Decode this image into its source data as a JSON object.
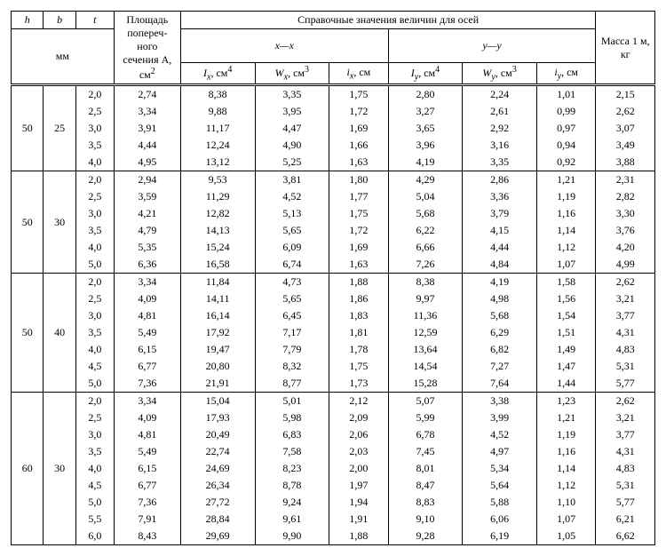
{
  "headers": {
    "h": "h",
    "b": "b",
    "t": "t",
    "mm": "мм",
    "area": "Площадь попереч- ного сечения A, см",
    "area_sup": "2",
    "ref_title": "Справочные значения величин для осей",
    "axis_x": "x—x",
    "axis_y": "y—y",
    "mass": "Масса 1 м, кг",
    "Ix": "I",
    "Ix_sub": "x",
    "Ix_unit": ", см",
    "Ix_sup": "4",
    "Wx": "W",
    "Wx_sub": "x",
    "Wx_unit": ", см",
    "Wx_sup": "3",
    "ix2": "i",
    "ix2_sub": "x",
    "ix2_unit": ", см",
    "Iy": "I",
    "Iy_sub": "y",
    "Iy_unit": ", см",
    "Iy_sup": "4",
    "Wy": "W",
    "Wy_sub": "y",
    "Wy_unit": ", см",
    "Wy_sup": "3",
    "iy2": "i",
    "iy2_sub": "y",
    "iy2_unit": ", см"
  },
  "groups": [
    {
      "h": "50",
      "b": "25",
      "rows": [
        {
          "t": "2,0",
          "A": "2,74",
          "Ix": "8,38",
          "Wx": "3,35",
          "ix": "1,75",
          "Iy": "2,80",
          "Wy": "2,24",
          "iy": "1,01",
          "m": "2,15"
        },
        {
          "t": "2,5",
          "A": "3,34",
          "Ix": "9,88",
          "Wx": "3,95",
          "ix": "1,72",
          "Iy": "3,27",
          "Wy": "2,61",
          "iy": "0,99",
          "m": "2,62"
        },
        {
          "t": "3,0",
          "A": "3,91",
          "Ix": "11,17",
          "Wx": "4,47",
          "ix": "1,69",
          "Iy": "3,65",
          "Wy": "2,92",
          "iy": "0,97",
          "m": "3,07"
        },
        {
          "t": "3,5",
          "A": "4,44",
          "Ix": "12,24",
          "Wx": "4,90",
          "ix": "1,66",
          "Iy": "3,96",
          "Wy": "3,16",
          "iy": "0,94",
          "m": "3,49"
        },
        {
          "t": "4,0",
          "A": "4,95",
          "Ix": "13,12",
          "Wx": "5,25",
          "ix": "1,63",
          "Iy": "4,19",
          "Wy": "3,35",
          "iy": "0,92",
          "m": "3,88"
        }
      ]
    },
    {
      "h": "50",
      "b": "30",
      "rows": [
        {
          "t": "2,0",
          "A": "2,94",
          "Ix": "9,53",
          "Wx": "3,81",
          "ix": "1,80",
          "Iy": "4,29",
          "Wy": "2,86",
          "iy": "1,21",
          "m": "2,31"
        },
        {
          "t": "2,5",
          "A": "3,59",
          "Ix": "11,29",
          "Wx": "4,52",
          "ix": "1,77",
          "Iy": "5,04",
          "Wy": "3,36",
          "iy": "1,19",
          "m": "2,82"
        },
        {
          "t": "3,0",
          "A": "4,21",
          "Ix": "12,82",
          "Wx": "5,13",
          "ix": "1,75",
          "Iy": "5,68",
          "Wy": "3,79",
          "iy": "1,16",
          "m": "3,30"
        },
        {
          "t": "3,5",
          "A": "4,79",
          "Ix": "14,13",
          "Wx": "5,65",
          "ix": "1,72",
          "Iy": "6,22",
          "Wy": "4,15",
          "iy": "1,14",
          "m": "3,76"
        },
        {
          "t": "4,0",
          "A": "5,35",
          "Ix": "15,24",
          "Wx": "6,09",
          "ix": "1,69",
          "Iy": "6,66",
          "Wy": "4,44",
          "iy": "1,12",
          "m": "4,20"
        },
        {
          "t": "5,0",
          "A": "6,36",
          "Ix": "16,58",
          "Wx": "6,74",
          "ix": "1,63",
          "Iy": "7,26",
          "Wy": "4,84",
          "iy": "1,07",
          "m": "4,99"
        }
      ]
    },
    {
      "h": "50",
      "b": "40",
      "rows": [
        {
          "t": "2,0",
          "A": "3,34",
          "Ix": "11,84",
          "Wx": "4,73",
          "ix": "1,88",
          "Iy": "8,38",
          "Wy": "4,19",
          "iy": "1,58",
          "m": "2,62"
        },
        {
          "t": "2,5",
          "A": "4,09",
          "Ix": "14,11",
          "Wx": "5,65",
          "ix": "1,86",
          "Iy": "9,97",
          "Wy": "4,98",
          "iy": "1,56",
          "m": "3,21"
        },
        {
          "t": "3,0",
          "A": "4,81",
          "Ix": "16,14",
          "Wx": "6,45",
          "ix": "1,83",
          "Iy": "11,36",
          "Wy": "5,68",
          "iy": "1,54",
          "m": "3,77"
        },
        {
          "t": "3,5",
          "A": "5,49",
          "Ix": "17,92",
          "Wx": "7,17",
          "ix": "1,81",
          "Iy": "12,59",
          "Wy": "6,29",
          "iy": "1,51",
          "m": "4,31"
        },
        {
          "t": "4,0",
          "A": "6,15",
          "Ix": "19,47",
          "Wx": "7,79",
          "ix": "1,78",
          "Iy": "13,64",
          "Wy": "6,82",
          "iy": "1,49",
          "m": "4,83"
        },
        {
          "t": "4,5",
          "A": "6,77",
          "Ix": "20,80",
          "Wx": "8,32",
          "ix": "1,75",
          "Iy": "14,54",
          "Wy": "7,27",
          "iy": "1,47",
          "m": "5,31"
        },
        {
          "t": "5,0",
          "A": "7,36",
          "Ix": "21,91",
          "Wx": "8,77",
          "ix": "1,73",
          "Iy": "15,28",
          "Wy": "7,64",
          "iy": "1,44",
          "m": "5,77"
        }
      ]
    },
    {
      "h": "60",
      "b": "30",
      "rows": [
        {
          "t": "2,0",
          "A": "3,34",
          "Ix": "15,04",
          "Wx": "5,01",
          "ix": "2,12",
          "Iy": "5,07",
          "Wy": "3,38",
          "iy": "1,23",
          "m": "2,62"
        },
        {
          "t": "2,5",
          "A": "4,09",
          "Ix": "17,93",
          "Wx": "5,98",
          "ix": "2,09",
          "Iy": "5,99",
          "Wy": "3,99",
          "iy": "1,21",
          "m": "3,21"
        },
        {
          "t": "3,0",
          "A": "4,81",
          "Ix": "20,49",
          "Wx": "6,83",
          "ix": "2,06",
          "Iy": "6,78",
          "Wy": "4,52",
          "iy": "1,19",
          "m": "3,77"
        },
        {
          "t": "3,5",
          "A": "5,49",
          "Ix": "22,74",
          "Wx": "7,58",
          "ix": "2,03",
          "Iy": "7,45",
          "Wy": "4,97",
          "iy": "1,16",
          "m": "4,31"
        },
        {
          "t": "4,0",
          "A": "6,15",
          "Ix": "24,69",
          "Wx": "8,23",
          "ix": "2,00",
          "Iy": "8,01",
          "Wy": "5,34",
          "iy": "1,14",
          "m": "4,83"
        },
        {
          "t": "4,5",
          "A": "6,77",
          "Ix": "26,34",
          "Wx": "8,78",
          "ix": "1,97",
          "Iy": "8,47",
          "Wy": "5,64",
          "iy": "1,12",
          "m": "5,31"
        },
        {
          "t": "5,0",
          "A": "7,36",
          "Ix": "27,72",
          "Wx": "9,24",
          "ix": "1,94",
          "Iy": "8,83",
          "Wy": "5,88",
          "iy": "1,10",
          "m": "5,77"
        },
        {
          "t": "5,5",
          "A": "7,91",
          "Ix": "28,84",
          "Wx": "9,61",
          "ix": "1,91",
          "Iy": "9,10",
          "Wy": "6,06",
          "iy": "1,07",
          "m": "6,21"
        },
        {
          "t": "6,0",
          "A": "8,43",
          "Ix": "29,69",
          "Wx": "9,90",
          "ix": "1,88",
          "Iy": "9,28",
          "Wy": "6,19",
          "iy": "1,05",
          "m": "6,62"
        }
      ]
    }
  ]
}
